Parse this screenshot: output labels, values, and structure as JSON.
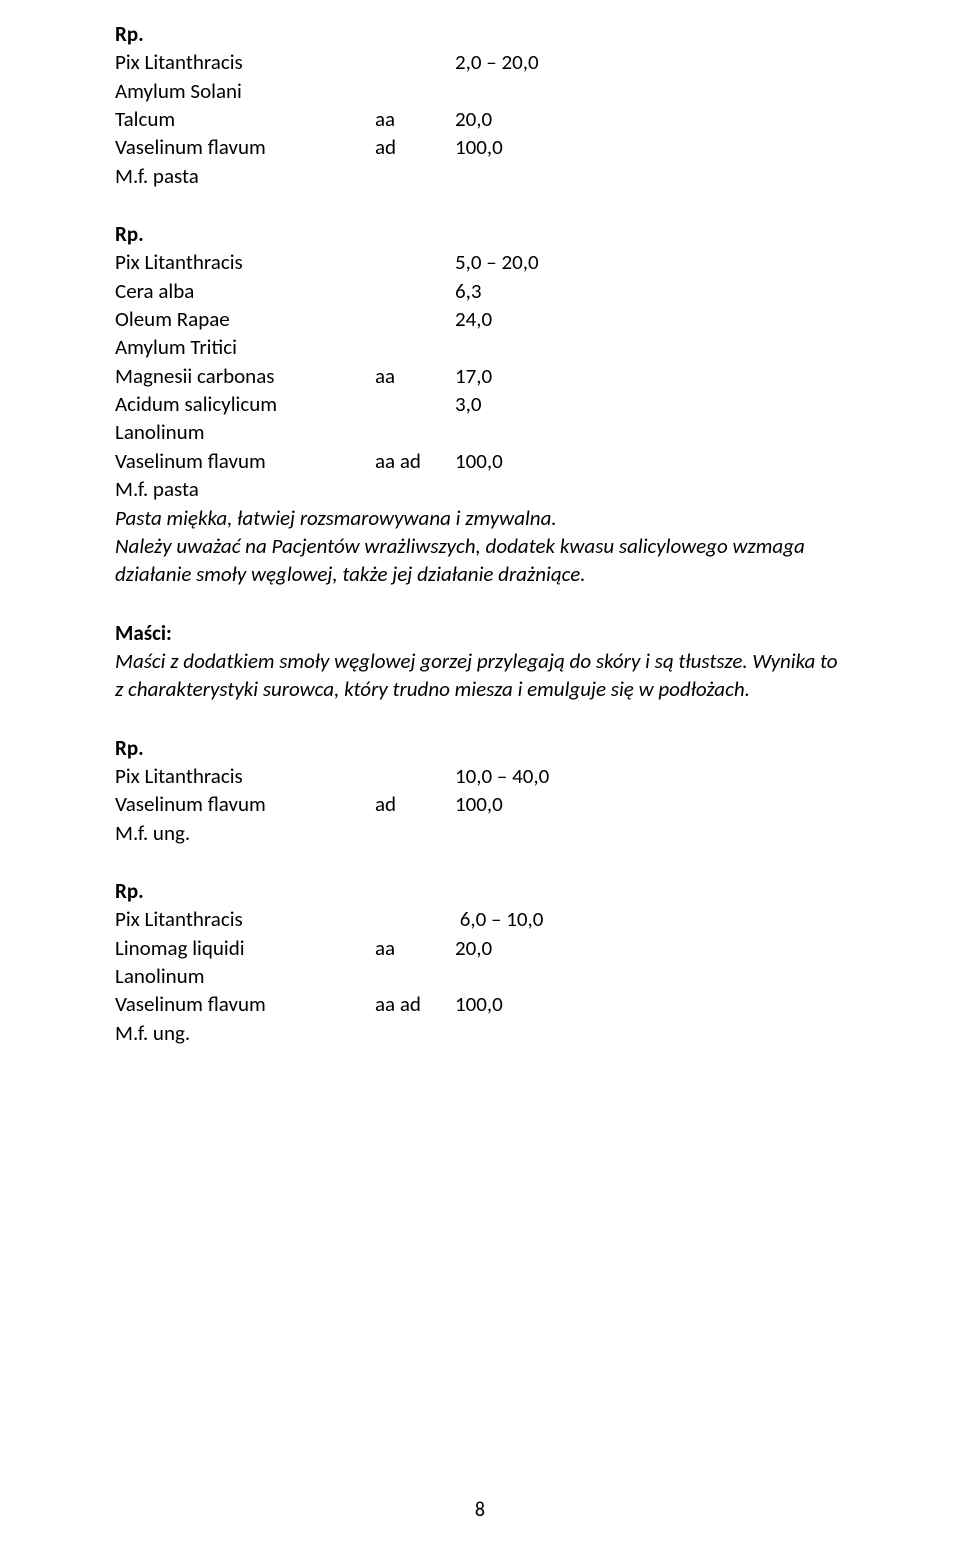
{
  "rx1": {
    "header": "Rp.",
    "lines": [
      {
        "name": "Pix Litanthracis",
        "mid": "",
        "val": "2,0 – 20,0"
      },
      {
        "name": "Amylum Solani",
        "mid": "",
        "val": ""
      },
      {
        "name": "Talcum",
        "mid": "aa",
        "val": "20,0"
      },
      {
        "name": "Vaselinum flavum",
        "mid": "ad",
        "val": "100,0"
      }
    ],
    "footer": "M.f. pasta"
  },
  "rx2": {
    "header": "Rp.",
    "lines": [
      {
        "name": "Pix Litanthracis",
        "mid": "",
        "val": "5,0 – 20,0"
      },
      {
        "name": "Cera alba",
        "mid": "",
        "val": "6,3"
      },
      {
        "name": "Oleum Rapae",
        "mid": "",
        "val": "24,0"
      },
      {
        "name": "Amylum Tritici",
        "mid": "",
        "val": ""
      },
      {
        "name": "Magnesii carbonas",
        "mid": "aa",
        "val": "17,0"
      },
      {
        "name": "Acidum salicylicum",
        "mid": "",
        "val": "3,0"
      },
      {
        "name": "Lanolinum",
        "mid": "",
        "val": ""
      },
      {
        "name": "Vaselinum flavum",
        "mid": "aa ad",
        "val": "100,0"
      }
    ],
    "footer": "M.f. pasta",
    "note1": "Pasta miękka, łatwiej rozsmarowywana i zmywalna.",
    "note2": "Należy uważać na Pacjentów wrażliwszych, dodatek kwasu salicylowego wzmaga działanie smoły węglowej, także jej działanie drażniące."
  },
  "section": {
    "title": "Maści:",
    "text": "Maści z dodatkiem smoły węglowej gorzej przylegają do skóry i są tłustsze. Wynika to z charakterystyki surowca, który trudno miesza i emulguje się w podłożach."
  },
  "rx3": {
    "header": "Rp.",
    "lines": [
      {
        "name": "Pix Litanthracis",
        "mid": "",
        "val": "10,0 – 40,0"
      },
      {
        "name": "Vaselinum flavum",
        "mid": "ad",
        "val": "100,0"
      }
    ],
    "footer": "M.f. ung."
  },
  "rx4": {
    "header": "Rp.",
    "lines": [
      {
        "name": "Pix Litanthracis",
        "mid": "",
        "val": " 6,0 – 10,0"
      },
      {
        "name": "Linomag liquidi",
        "mid": "aa",
        "val": "20,0"
      },
      {
        "name": "Lanolinum",
        "mid": "",
        "val": ""
      },
      {
        "name": "Vaselinum flavum",
        "mid": "aa ad",
        "val": "100,0"
      }
    ],
    "footer": "M.f. ung."
  },
  "page_number": "8"
}
